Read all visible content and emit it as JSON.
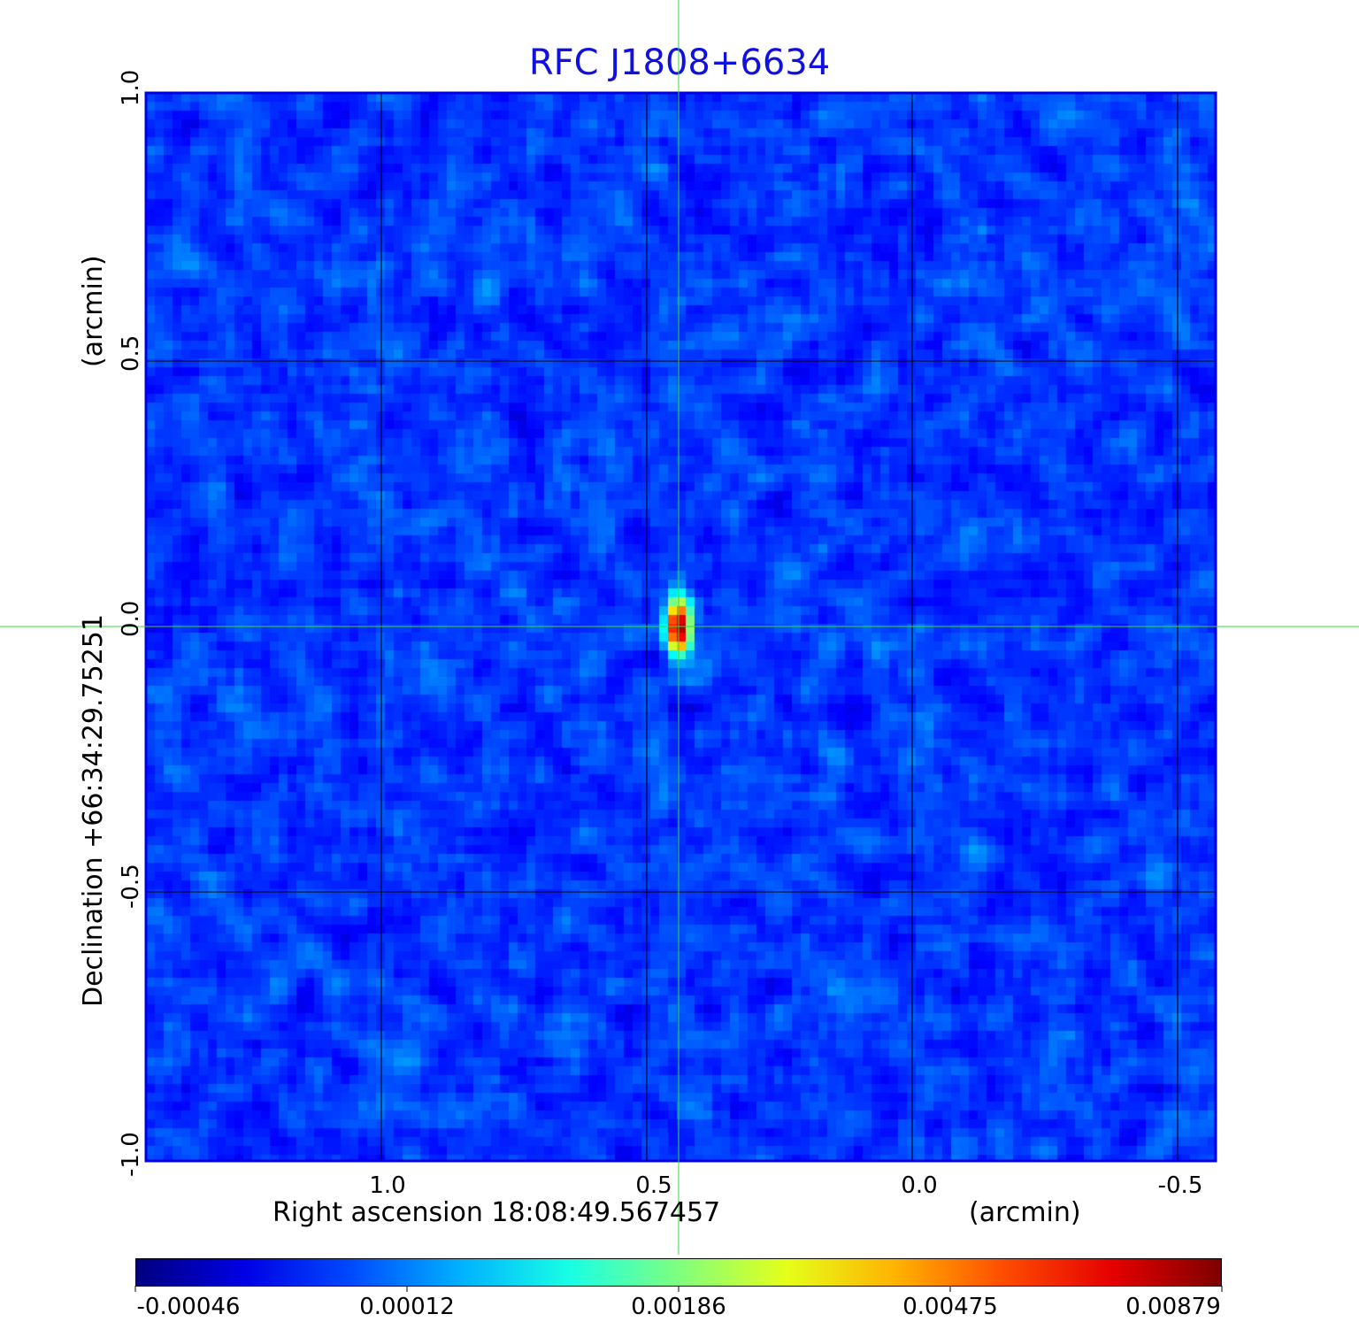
{
  "chart_data": {
    "type": "heatmap",
    "title": "RFC J1808+6634",
    "xlabel": "Right ascension  18:08:49.567457",
    "xunit": "(arcmin)",
    "ylabel": "Declination  +66:34:29.75251",
    "yunit": "(arcmin)",
    "x_ticks": [
      "1.0",
      "0.5",
      "0.0",
      "-0.5"
    ],
    "x_tick_values": [
      1.0,
      0.5,
      0.0,
      -0.5
    ],
    "y_ticks": [
      "1.0",
      "0.5",
      "0.0",
      "-0.5",
      "-1.0"
    ],
    "y_tick_values": [
      1.0,
      0.5,
      0.0,
      -0.5,
      -1.0
    ],
    "xlim": [
      1.44,
      -0.57
    ],
    "ylim": [
      -1.0,
      1.0
    ],
    "grid": true,
    "colormap": "jet",
    "colorbar_ticks": [
      "-0.00046",
      "0.00012",
      "0.00186",
      "0.00475",
      "0.00879"
    ],
    "colorbar_range": [
      -0.00046,
      0.00879
    ],
    "crosshair": {
      "x": 0.44,
      "y": 0.0
    },
    "source_peak": {
      "x": 0.44,
      "y": 0.0,
      "value": 0.00879
    },
    "colors": {
      "title": "#1010e0",
      "frame": "#0000dd",
      "crosshair": "#33dd33",
      "grid": "#000000"
    }
  }
}
